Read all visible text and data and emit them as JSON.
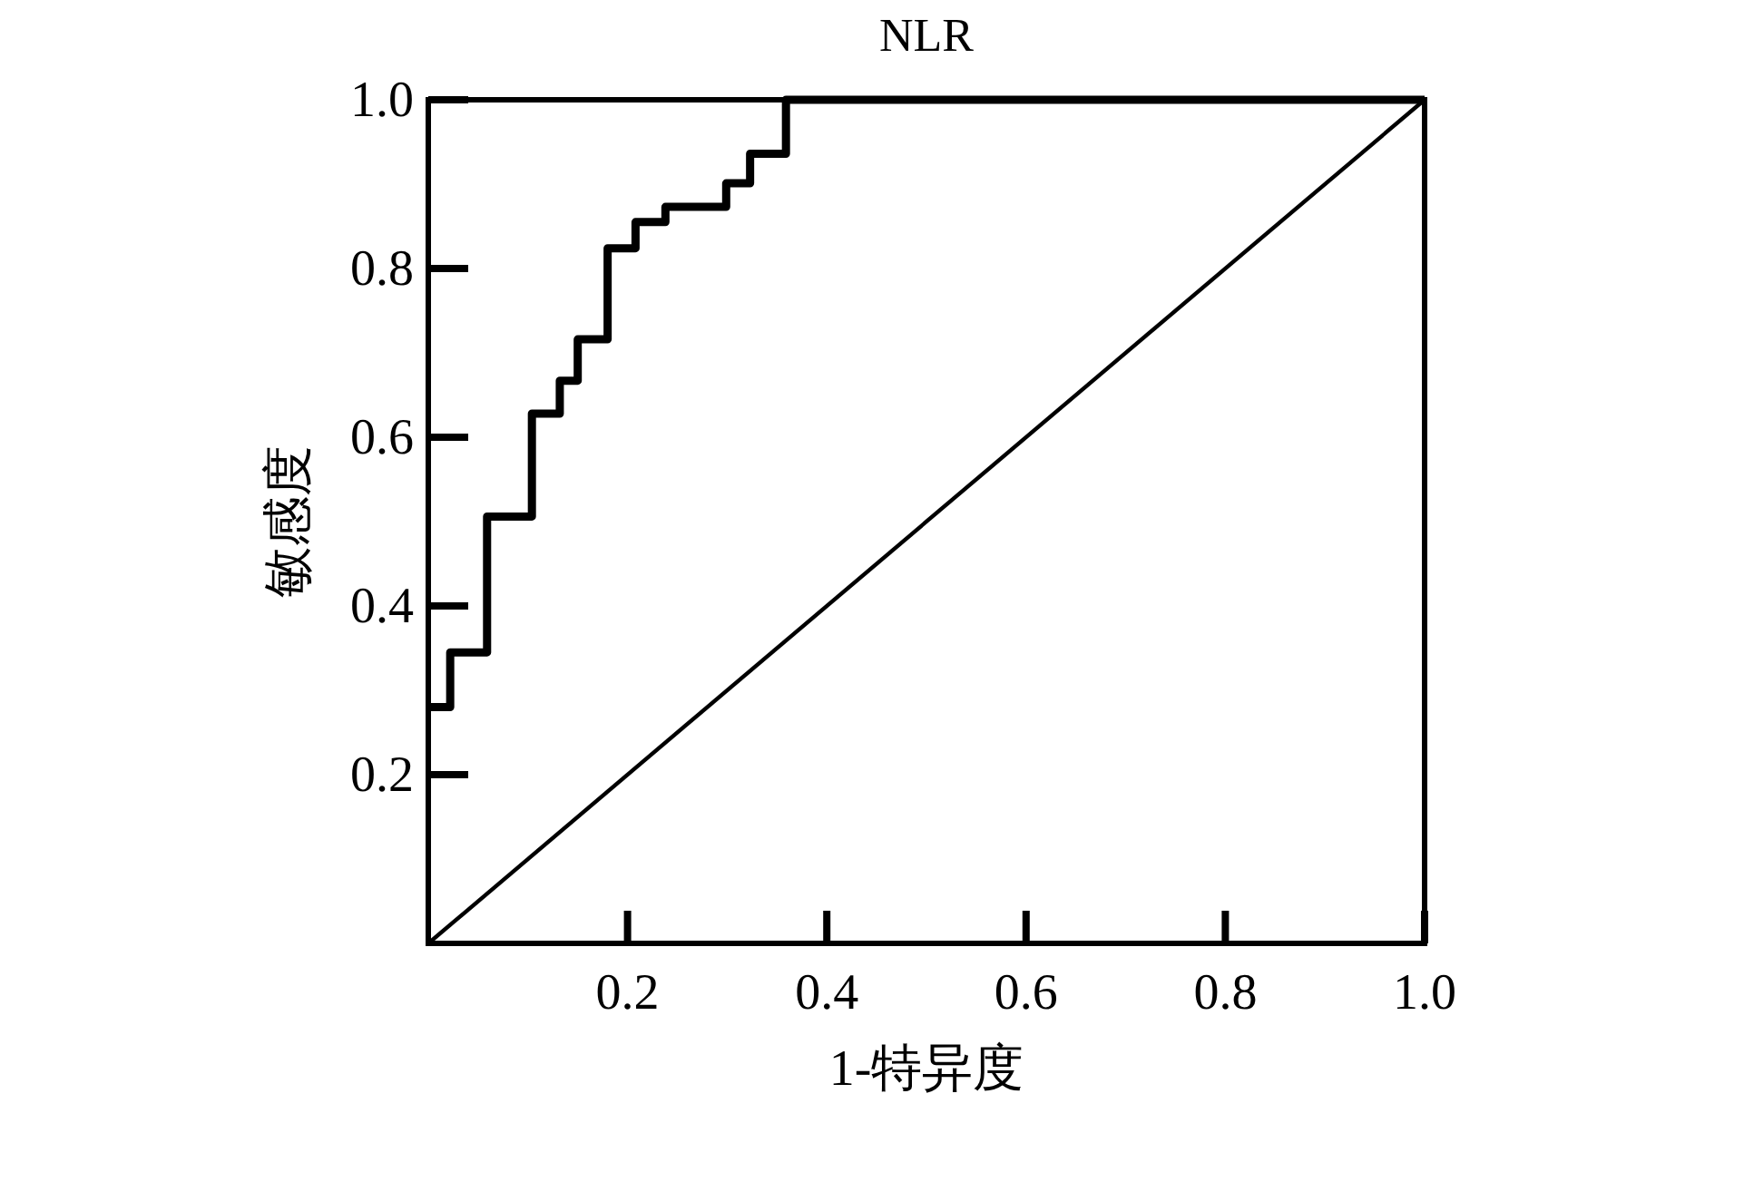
{
  "chart_data": {
    "type": "line",
    "title": "NLR",
    "xlabel": "1-特异度",
    "ylabel": "敏感度",
    "series": [
      {
        "type": "step",
        "color": "#000000",
        "x": [
          0,
          0.022,
          0.059,
          0.104,
          0.132,
          0.15,
          0.18,
          0.208,
          0.238,
          0.299,
          0.323,
          0.359,
          1.0
        ],
        "values": [
          0.28,
          0.345,
          0.506,
          0.628,
          0.667,
          0.716,
          0.824,
          0.855,
          0.873,
          0.901,
          0.936,
          1.0,
          1.0
        ]
      },
      {
        "color": "#000000",
        "x": [
          0,
          1
        ],
        "values": [
          0,
          1
        ]
      }
    ],
    "xlim": [
      0,
      1
    ],
    "ylim": [
      0,
      1
    ],
    "xticks": [
      {
        "value": 0.2,
        "label": "0.2"
      },
      {
        "value": 0.4,
        "label": "0.4"
      },
      {
        "value": 0.6,
        "label": "0.6"
      },
      {
        "value": 0.8,
        "label": "0.8"
      },
      {
        "value": 1.0,
        "label": "1.0"
      }
    ],
    "yticks": [
      {
        "value": 0.2,
        "label": "0.2"
      },
      {
        "value": 0.4,
        "label": "0.4"
      },
      {
        "value": 0.6,
        "label": "0.6"
      },
      {
        "value": 0.8,
        "label": "0.8"
      },
      {
        "value": 1.0,
        "label": "1.0"
      }
    ],
    "grid": false,
    "marker": "none",
    "line_style": "solid"
  }
}
